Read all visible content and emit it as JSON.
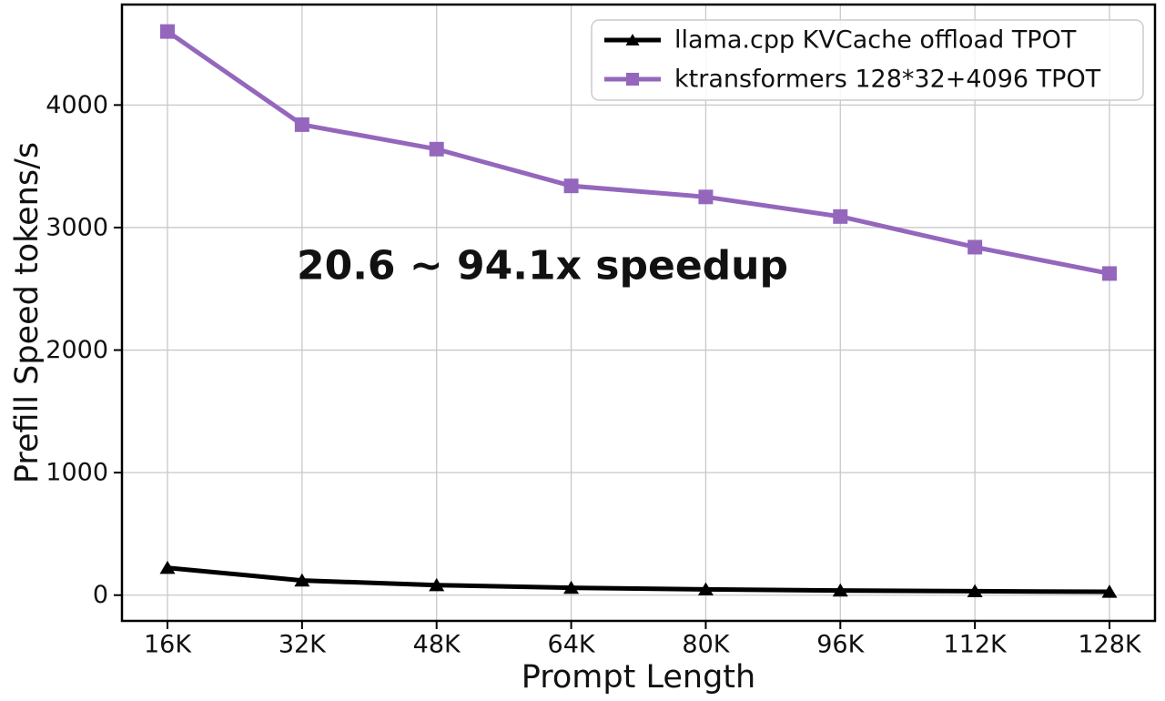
{
  "figure": {
    "background": "#ffffff"
  },
  "chart_data": {
    "type": "line",
    "title": "",
    "xlabel": "Prompt Length",
    "ylabel": "Prefill Speed tokens/s",
    "categories": [
      "16K",
      "32K",
      "48K",
      "64K",
      "80K",
      "96K",
      "112K",
      "128K"
    ],
    "yticks": [
      0,
      1000,
      2000,
      3000,
      4000
    ],
    "ylim": [
      -210,
      4820
    ],
    "grid": true,
    "grid_color": "#c8c8c8",
    "legend_position": "top-right",
    "series": [
      {
        "name": "llama.cpp KVCache offload TPOT",
        "color": "#000000",
        "marker": "triangle",
        "values": [
          223,
          120,
          82,
          60,
          47,
          38,
          32,
          28
        ]
      },
      {
        "name": "ktransformers 128*32+4096 TPOT",
        "color": "#9467bd",
        "marker": "square",
        "values": [
          4600,
          3840,
          3640,
          3340,
          3250,
          3090,
          2840,
          2625
        ]
      }
    ],
    "annotation": {
      "text": "20.6 ~ 94.1x speedup",
      "color": "#e8352b"
    }
  }
}
